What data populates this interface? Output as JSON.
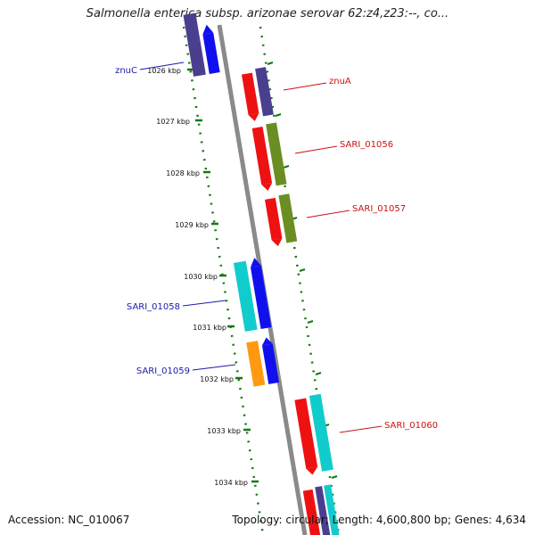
{
  "title": "Salmonella enterica subsp. arizonae serovar 62:z4,z23:--, co...",
  "footer": {
    "accession": "Accession: NC_010067",
    "summary": "Topology: circular; Length: 4,600,800 bp; Genes: 4,634"
  },
  "kbp_labels": [
    "1026 kbp",
    "1027 kbp",
    "1028 kbp",
    "1029 kbp",
    "1030 kbp",
    "1031 kbp",
    "1032 kbp",
    "1033 kbp",
    "1034 kbp"
  ],
  "gene_labels": {
    "left": [
      "znuC",
      "SARI_01058",
      "SARI_01059"
    ],
    "right": [
      "znuA",
      "SARI_01056",
      "SARI_01057",
      "SARI_01060"
    ]
  },
  "colors": {
    "backbone": "#8a8a8a",
    "ticks": "#117a11",
    "left_label": "#1a1aa8",
    "right_label": "#cc1111",
    "dark_blue": "#4a3f8f",
    "blue": "#1010ee",
    "red": "#ee1111",
    "olive": "#6b8e23",
    "cyan": "#11cccc",
    "orange": "#ff9911"
  }
}
